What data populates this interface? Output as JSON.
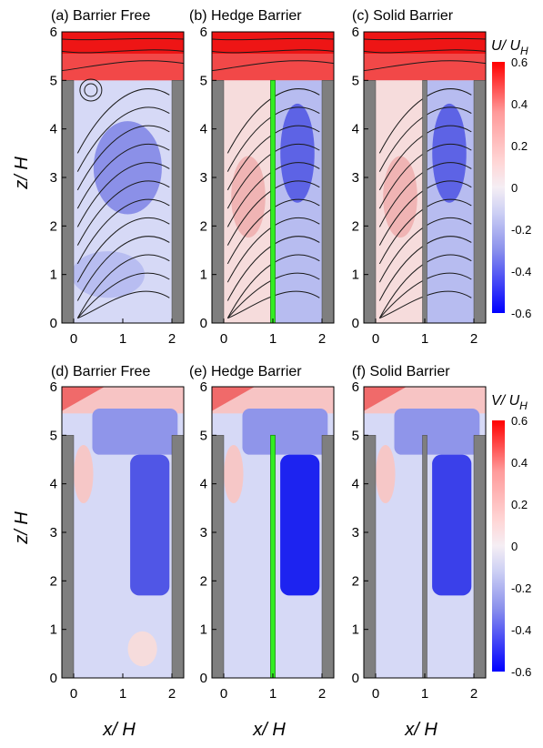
{
  "chart_data": [
    {
      "panel": "a",
      "type": "streamline-contour",
      "title": "(a) Barrier Free",
      "variable": "U/U_H",
      "barrier": "none",
      "xlim": [
        0,
        2
      ],
      "ylim": [
        0,
        6
      ],
      "x_ticks": [
        "0",
        "1",
        "2"
      ],
      "y_ticks": [
        "0",
        "1",
        "2",
        "3",
        "4",
        "5",
        "6"
      ],
      "building_height": 5,
      "features": {
        "recirculation_vortex": [
          0.35,
          4.8
        ],
        "negative_core": [
          1.0,
          3.3
        ],
        "shear_layer_top": "red"
      }
    },
    {
      "panel": "b",
      "type": "streamline-contour",
      "title": "(b) Hedge Barrier",
      "variable": "U/U_H",
      "barrier": "hedge",
      "barrier_x": 1,
      "barrier_height": 5,
      "xlim": [
        0,
        2
      ],
      "ylim": [
        0,
        6
      ],
      "x_ticks": [
        "0",
        "1",
        "2"
      ],
      "y_ticks": [
        "0",
        "1",
        "2",
        "3",
        "4",
        "5",
        "6"
      ],
      "building_height": 5,
      "features": {
        "positive_left_half": true,
        "negative_right_half": true
      }
    },
    {
      "panel": "c",
      "type": "streamline-contour",
      "title": "(c) Solid Barrier",
      "variable": "U/U_H",
      "barrier": "solid",
      "barrier_x": 1,
      "barrier_height": 5,
      "xlim": [
        0,
        2
      ],
      "ylim": [
        0,
        6
      ],
      "x_ticks": [
        "0",
        "1",
        "2"
      ],
      "y_ticks": [
        "0",
        "1",
        "2",
        "3",
        "4",
        "5",
        "6"
      ],
      "building_height": 5,
      "features": {
        "positive_left_half": true,
        "negative_right_half": true
      }
    },
    {
      "panel": "d",
      "type": "heatmap",
      "title": "(d) Barrier Free",
      "variable": "V/U_H",
      "barrier": "none",
      "xlim": [
        0,
        2
      ],
      "ylim": [
        0,
        6
      ],
      "x_ticks": [
        "0",
        "1",
        "2"
      ],
      "y_ticks": [
        "0",
        "1",
        "2",
        "3",
        "4",
        "5",
        "6"
      ],
      "building_height": 5
    },
    {
      "panel": "e",
      "type": "heatmap",
      "title": "(e) Hedge Barrier",
      "variable": "V/U_H",
      "barrier": "hedge",
      "barrier_x": 1,
      "barrier_height": 5,
      "xlim": [
        0,
        2
      ],
      "ylim": [
        0,
        6
      ],
      "x_ticks": [
        "0",
        "1",
        "2"
      ],
      "y_ticks": [
        "0",
        "1",
        "2",
        "3",
        "4",
        "5",
        "6"
      ],
      "building_height": 5
    },
    {
      "panel": "f",
      "type": "heatmap",
      "title": "(f) Solid Barrier",
      "variable": "V/U_H",
      "barrier": "solid",
      "barrier_x": 1,
      "barrier_height": 5,
      "xlim": [
        0,
        2
      ],
      "ylim": [
        0,
        6
      ],
      "x_ticks": [
        "0",
        "1",
        "2"
      ],
      "y_ticks": [
        "0",
        "1",
        "2",
        "3",
        "4",
        "5",
        "6"
      ],
      "building_height": 5
    }
  ],
  "colorbar_top": {
    "label": "U/ U_H",
    "label_main": "U/ U",
    "label_sub": "H",
    "ticks": [
      "0.6",
      "0.4",
      "0.2",
      "0",
      "-0.2",
      "-0.4",
      "-0.6"
    ],
    "range": [
      -0.6,
      0.6
    ],
    "colors": [
      "#ff0000",
      "#ff5959",
      "#ff9a9a",
      "#ffcaca",
      "#f0e4ec",
      "#c9ccf2",
      "#a3a8ee",
      "#7d84ea",
      "#5057e6",
      "#2329f2",
      "#0000ff"
    ]
  },
  "colorbar_bottom": {
    "label": "V/ U_H",
    "label_main": "V/ U",
    "label_sub": "H",
    "ticks": [
      "0.6",
      "0.4",
      "0.2",
      "0",
      "-0.2",
      "-0.4",
      "-0.6"
    ],
    "range": [
      -0.6,
      0.6
    ],
    "colors": [
      "#ff0000",
      "#ff5959",
      "#ff9a9a",
      "#ffcaca",
      "#f0e4ec",
      "#c9ccf2",
      "#a3a8ee",
      "#7d84ea",
      "#5057e6",
      "#2329f2",
      "#0000ff"
    ]
  },
  "labels": {
    "y_axis": "z/ H",
    "x_axis": "x/ H"
  },
  "colors": {
    "building": "#7f7f7f",
    "hedge": "#33ee22",
    "streamline": "#1a1a1a",
    "axis": "#000000"
  }
}
